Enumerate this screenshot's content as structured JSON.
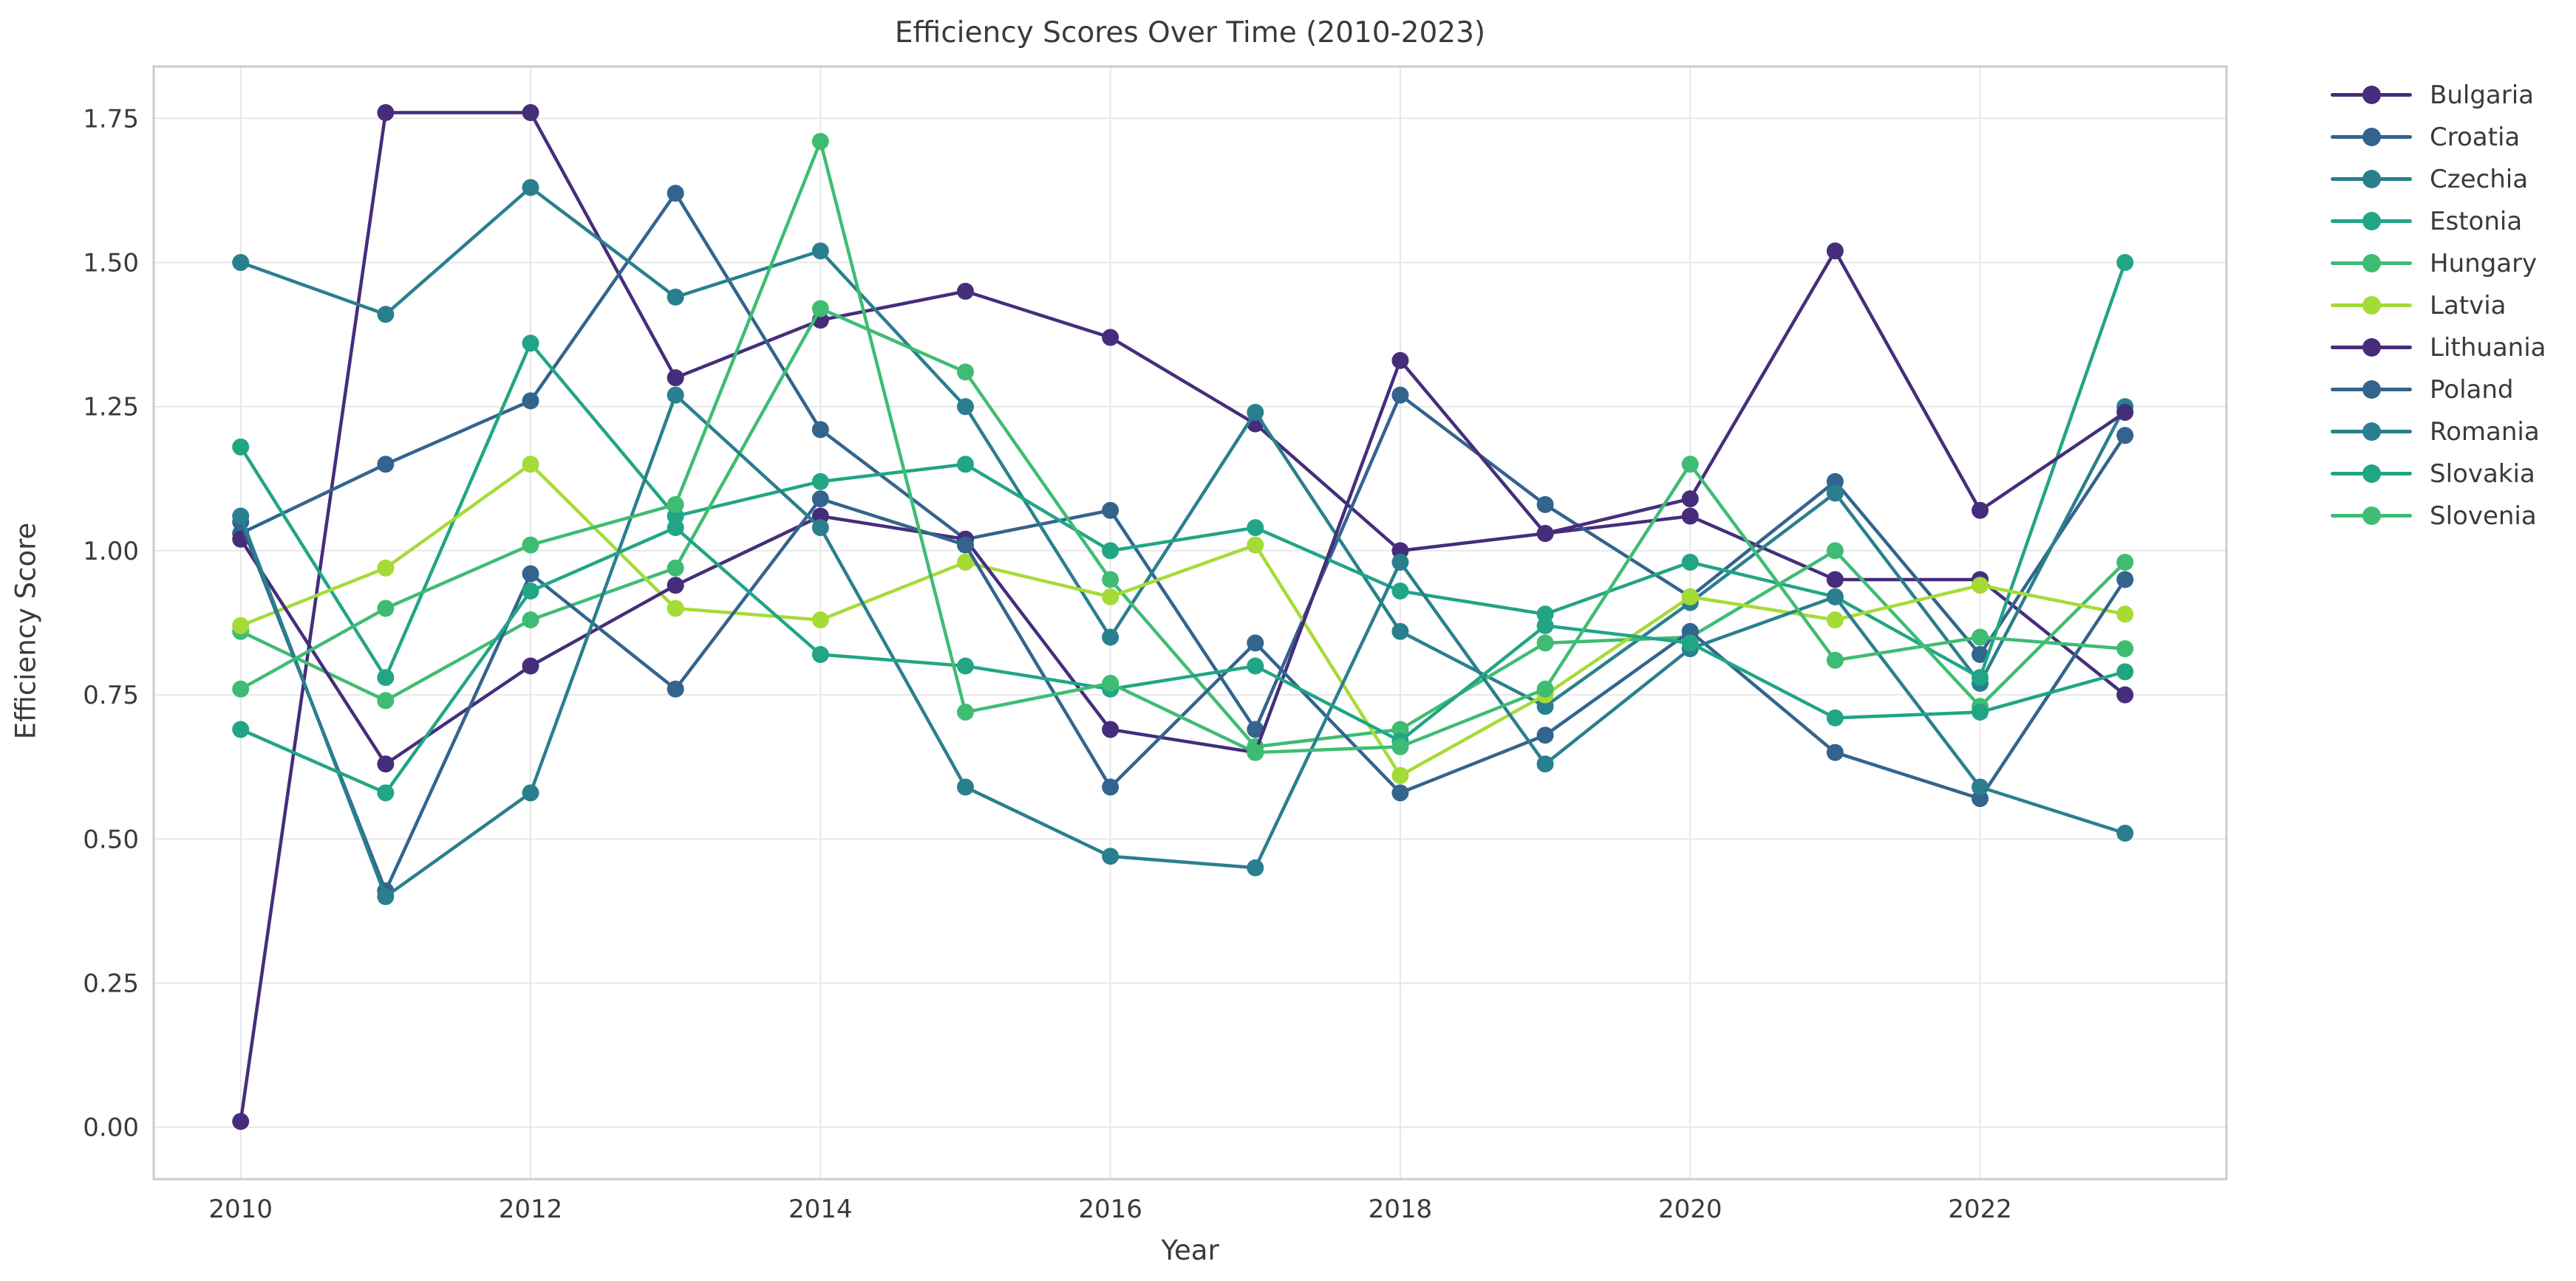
{
  "chart_data": {
    "type": "line",
    "title": "Efficiency Scores Over Time (2010-2023)",
    "xlabel": "Year",
    "ylabel": "Efficiency Score",
    "x": [
      2010,
      2011,
      2012,
      2013,
      2014,
      2015,
      2016,
      2017,
      2018,
      2019,
      2020,
      2021,
      2022,
      2023
    ],
    "xtick_labels": [
      "2010",
      "2012",
      "2014",
      "2016",
      "2018",
      "2020",
      "2022"
    ],
    "xticks": [
      2010,
      2012,
      2014,
      2016,
      2018,
      2020,
      2022
    ],
    "yticks": [
      0.0,
      0.25,
      0.5,
      0.75,
      1.0,
      1.25,
      1.5,
      1.75
    ],
    "ytick_labels": [
      "0.00",
      "0.25",
      "0.50",
      "0.75",
      "1.00",
      "1.25",
      "1.50",
      "1.75"
    ],
    "xlim": [
      2009.4,
      2023.7
    ],
    "ylim": [
      -0.09,
      1.84
    ],
    "grid": true,
    "legend_position": "right of plot, no frame",
    "series": [
      {
        "name": "Bulgaria",
        "color": "#462d7b",
        "values": [
          0.01,
          1.76,
          1.76,
          1.3,
          1.4,
          1.45,
          1.37,
          1.22,
          1.0,
          1.03,
          1.06,
          0.95,
          0.95,
          0.75
        ]
      },
      {
        "name": "Croatia",
        "color": "#32648e",
        "values": [
          1.03,
          1.15,
          1.26,
          1.62,
          1.21,
          1.02,
          1.07,
          0.69,
          1.27,
          1.08,
          0.92,
          1.12,
          0.82,
          1.2
        ]
      },
      {
        "name": "Czechia",
        "color": "#2a7f8e",
        "values": [
          1.5,
          1.41,
          1.63,
          1.44,
          1.52,
          1.25,
          0.85,
          1.24,
          0.86,
          0.73,
          0.91,
          1.1,
          0.77,
          1.25
        ]
      },
      {
        "name": "Estonia",
        "color": "#21a585",
        "values": [
          1.18,
          0.78,
          1.36,
          1.06,
          1.12,
          1.15,
          1.0,
          1.04,
          0.93,
          0.89,
          0.98,
          0.92,
          0.78,
          1.5
        ]
      },
      {
        "name": "Hungary",
        "color": "#3fbc73",
        "values": [
          0.86,
          0.74,
          0.88,
          0.97,
          1.42,
          1.31,
          0.95,
          0.66,
          0.69,
          0.84,
          0.85,
          1.0,
          0.73,
          0.98
        ]
      },
      {
        "name": "Latvia",
        "color": "#a5db36",
        "values": [
          0.87,
          0.97,
          1.15,
          0.9,
          0.88,
          0.98,
          0.92,
          1.01,
          0.61,
          0.75,
          0.92,
          0.88,
          0.94,
          0.89
        ]
      },
      {
        "name": "Lithuania",
        "color": "#462d7b",
        "values": [
          1.02,
          0.63,
          0.8,
          0.94,
          1.06,
          1.02,
          0.69,
          0.65,
          1.33,
          1.03,
          1.09,
          1.52,
          1.07,
          1.24
        ]
      },
      {
        "name": "Poland",
        "color": "#32648e",
        "values": [
          1.05,
          0.41,
          0.96,
          0.76,
          1.09,
          1.01,
          0.59,
          0.84,
          0.58,
          0.68,
          0.86,
          0.65,
          0.57,
          0.95
        ]
      },
      {
        "name": "Romania",
        "color": "#2a7f8e",
        "values": [
          1.06,
          0.4,
          0.58,
          1.27,
          1.04,
          0.59,
          0.47,
          0.45,
          0.98,
          0.63,
          0.83,
          0.92,
          0.59,
          0.51
        ]
      },
      {
        "name": "Slovakia",
        "color": "#21a585",
        "values": [
          0.69,
          0.58,
          0.93,
          1.04,
          0.82,
          0.8,
          0.76,
          0.8,
          0.67,
          0.87,
          0.84,
          0.71,
          0.72,
          0.79
        ]
      },
      {
        "name": "Slovenia",
        "color": "#3fbc73",
        "values": [
          0.76,
          0.9,
          1.01,
          1.08,
          1.71,
          0.72,
          0.77,
          0.65,
          0.66,
          0.76,
          1.15,
          0.81,
          0.85,
          0.83
        ]
      }
    ]
  },
  "style_colors": {
    "background": "#ffffff",
    "grid": "#e7e7e7",
    "spine": "#cccccc",
    "text": "#3a3a3a"
  }
}
